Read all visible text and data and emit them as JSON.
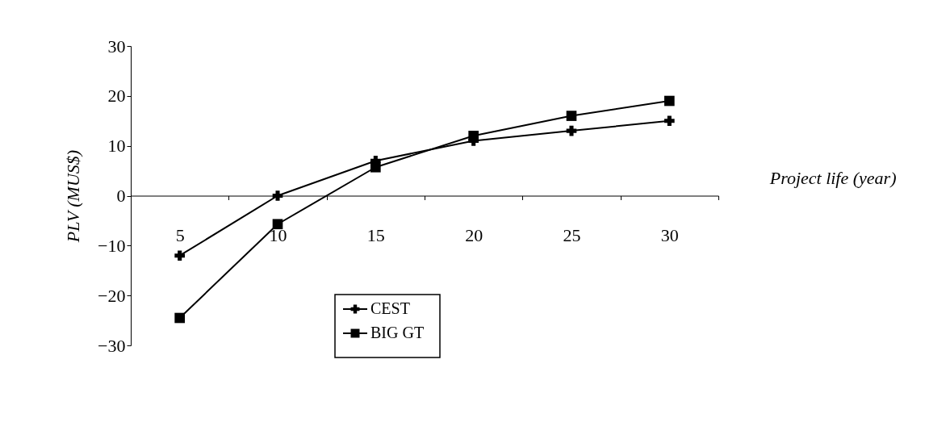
{
  "chart_data": {
    "type": "line",
    "xlabel": "Project life (year)",
    "ylabel": "PLV (MUS$)",
    "categories": [
      "5",
      "10",
      "15",
      "20",
      "25",
      "30"
    ],
    "series": [
      {
        "name": "CEST",
        "color": "#000000",
        "marker": "cross",
        "values": [
          -12,
          0,
          7,
          11,
          13,
          15
        ]
      },
      {
        "name": "BIG GT",
        "color": "#000000",
        "marker": "square",
        "values": [
          -24.5,
          -5.7,
          5.7,
          12,
          16,
          19
        ]
      }
    ],
    "ylim": [
      -30,
      30
    ],
    "yticks": [
      -30,
      -20,
      -10,
      0,
      10,
      20,
      30
    ],
    "grid": false,
    "legend": "bottom"
  }
}
